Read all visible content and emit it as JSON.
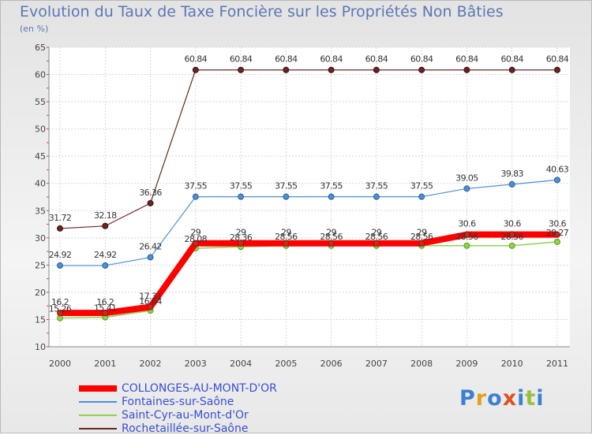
{
  "title": "Evolution du Taux de Taxe Foncière sur les Propriétés Non Bâties",
  "unit": "(en %)",
  "logo": {
    "text": "Proxiti"
  },
  "colors": {
    "COLLONGES-AU-MONT-D'OR": "#ff0000",
    "Fontaines-sur-Saône": "#4c8fd3",
    "Saint-Cyr-au-Mont-d'Or": "#8ed34d",
    "Rochetaillée-sur-Saône": "#6b2424"
  },
  "chart_data": {
    "type": "line",
    "title": "Evolution du Taux de Taxe Foncière sur les Propriétés Non Bâties",
    "ylabel": "(en %)",
    "xlabel": "",
    "x": [
      "2000",
      "2001",
      "2002",
      "2003",
      "2004",
      "2005",
      "2006",
      "2007",
      "2008",
      "2009",
      "2010",
      "2011"
    ],
    "ylim": [
      10,
      65
    ],
    "yticks": [
      "10",
      "15",
      "20",
      "25",
      "30",
      "35",
      "40",
      "45",
      "50",
      "55",
      "60",
      "65"
    ],
    "grid": true,
    "legend_position": "bottom",
    "series": [
      {
        "name": "Rochetaillée-sur-Saône",
        "values": [
          31.72,
          32.18,
          36.36,
          60.84,
          60.84,
          60.84,
          60.84,
          60.84,
          60.84,
          60.84,
          60.84,
          60.84
        ],
        "labels": [
          "31.72",
          "32.18",
          "36.36",
          "60.84",
          "60.84",
          "60.84",
          "60.84",
          "60.84",
          "60.84",
          "60.84",
          "60.84",
          "60.84"
        ]
      },
      {
        "name": "Fontaines-sur-Saône",
        "values": [
          24.92,
          24.92,
          26.42,
          37.55,
          37.55,
          37.55,
          37.55,
          37.55,
          37.55,
          39.05,
          39.83,
          40.63
        ],
        "labels": [
          "24.92",
          "24.92",
          "26.42",
          "37.55",
          "37.55",
          "37.55",
          "37.55",
          "37.55",
          "37.55",
          "39.05",
          "39.83",
          "40.63"
        ]
      },
      {
        "name": "Saint-Cyr-au-Mont-d'Or",
        "values": [
          15.26,
          15.41,
          16.64,
          28.08,
          28.36,
          28.56,
          28.56,
          28.56,
          28.56,
          28.56,
          28.56,
          29.27
        ],
        "labels": [
          "15.26",
          "15.41",
          "16.64",
          "28.08",
          "28.36",
          "28.56",
          "28.56",
          "28.56",
          "28.56",
          "28.56",
          "28.56",
          "29.27"
        ]
      },
      {
        "name": "COLLONGES-AU-MONT-D'OR",
        "values": [
          16.2,
          16.2,
          17.31,
          29,
          29,
          29,
          29,
          29,
          29,
          30.6,
          30.6,
          30.6
        ],
        "labels": [
          "16.2",
          "16.2",
          "17.31",
          "29",
          "29",
          "29",
          "29",
          "29",
          "29",
          "30.6",
          "30.6",
          "30.6"
        ]
      }
    ]
  },
  "legend": [
    {
      "name": "COLLONGES-AU-MONT-D'OR"
    },
    {
      "name": "Fontaines-sur-Saône"
    },
    {
      "name": "Saint-Cyr-au-Mont-d'Or"
    },
    {
      "name": "Rochetaillée-sur-Saône"
    }
  ]
}
